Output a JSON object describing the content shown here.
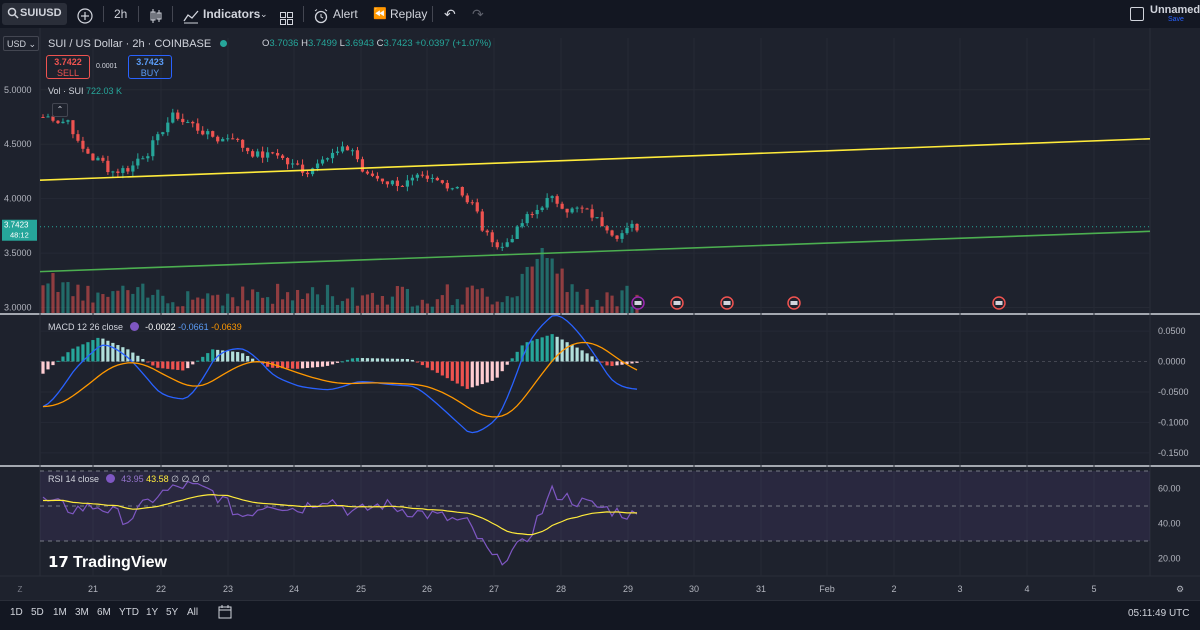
{
  "toolbar": {
    "symbol": "SUIUSD",
    "interval": "2h",
    "indicators_label": "Indicators",
    "alert_label": "Alert",
    "replay_label": "Replay",
    "layout_name": "Unnamed",
    "save_label": "Save"
  },
  "legend": {
    "currency": "USD",
    "title": "SUI / US Dollar · 2h · COINBASE",
    "open_label": "O",
    "open": "3.7036",
    "high_label": "H",
    "high": "3.7499",
    "low_label": "L",
    "low": "3.6943",
    "close_label": "C",
    "close": "3.7423",
    "change": "+0.0397 (+1.07%)",
    "sell_price": "3.7422",
    "sell_label": "SELL",
    "spread": "0.0001",
    "buy_price": "3.7423",
    "buy_label": "BUY",
    "vol_label": "Vol · SUI",
    "vol_value": "722.03 K"
  },
  "price_axis": {
    "ticks": [
      "5.0000",
      "4.5000",
      "4.0000",
      "3.5000",
      "3.0000"
    ],
    "current_price": "3.7423",
    "countdown": "48:12"
  },
  "macd": {
    "label": "MACD 12 26 close",
    "hist": "-0.0022",
    "macd": "-0.0661",
    "signal": "-0.0639",
    "ticks": [
      "0.0500",
      "0.0000",
      "-0.0500",
      "-0.1000",
      "-0.1500"
    ]
  },
  "rsi": {
    "label": "RSI 14 close",
    "rsi": "43.95",
    "ma": "43.58",
    "extras": "∅ ∅ ∅ ∅",
    "ticks": [
      "60.00",
      "40.00",
      "20.00"
    ]
  },
  "time_axis": [
    "21",
    "22",
    "23",
    "24",
    "25",
    "26",
    "27",
    "28",
    "29",
    "30",
    "31",
    "Feb",
    "2",
    "3",
    "4",
    "5"
  ],
  "bottom": {
    "ranges": [
      "1D",
      "5D",
      "1M",
      "3M",
      "6M",
      "YTD",
      "1Y",
      "5Y",
      "All"
    ],
    "clock": "05:11:49 UTC"
  },
  "brand": {
    "name": "TradingView"
  },
  "colors": {
    "up": "#26a69a",
    "down": "#ef5350",
    "upper_trendline": "#ffeb3b",
    "lower_trendline": "#4caf50",
    "macd_line": "#2962ff",
    "signal_line": "#ff9800",
    "rsi_line": "#7e57c2",
    "rsi_ma": "#ffeb3b"
  },
  "chart_data": {
    "type": "candlestick",
    "symbol": "SUI / US Dollar",
    "interval": "2h",
    "exchange": "COINBASE",
    "approx_close_path": [
      4.75,
      4.72,
      4.45,
      4.35,
      4.25,
      4.28,
      4.4,
      4.55,
      4.75,
      4.7,
      4.62,
      4.55,
      4.58,
      4.45,
      4.4,
      4.42,
      4.3,
      4.25,
      4.4,
      4.42,
      4.45,
      4.2,
      4.18,
      4.15,
      4.16,
      4.15,
      4.14,
      4.12,
      3.95,
      3.65,
      3.55,
      3.7,
      3.85,
      3.98,
      3.95,
      3.9,
      3.85,
      3.75,
      3.68,
      3.74
    ],
    "ylim": [
      2.95,
      5.2
    ],
    "macd_hist_path": [
      -0.02,
      0.02,
      0.04,
      0.02,
      -0.01,
      -0.015,
      0.02,
      0.015,
      -0.01,
      -0.012,
      -0.008,
      0.006,
      0.005,
      0.004,
      -0.02,
      -0.045,
      -0.03,
      0.03,
      0.045,
      0.02,
      -0.008,
      -0.0022
    ],
    "macd_ylim": [
      -0.17,
      0.06
    ],
    "rsi_path": [
      53,
      48,
      50,
      42,
      56,
      62,
      58,
      44,
      52,
      48,
      55,
      46,
      51,
      47,
      44,
      40,
      18,
      28,
      58,
      52,
      48,
      44
    ],
    "rsi_ylim": [
      10,
      70
    ]
  }
}
